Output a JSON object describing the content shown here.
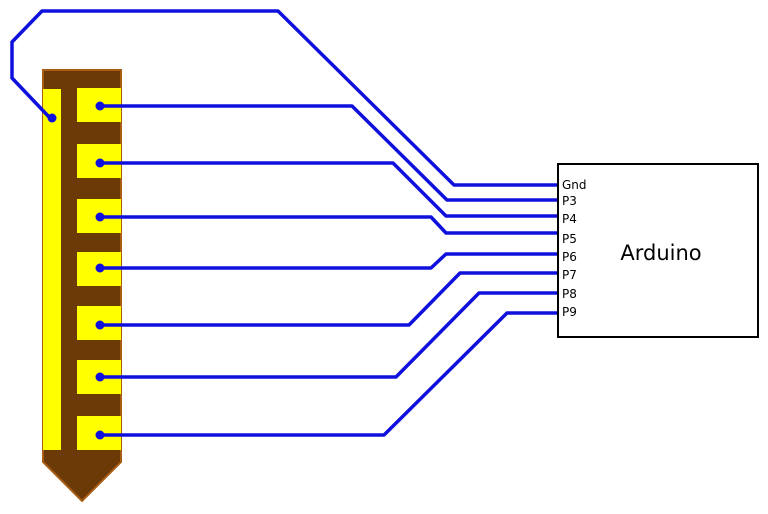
{
  "colors": {
    "probe_body": "#6b3a06",
    "probe_outline": "#a85d12",
    "pad": "#ffff00",
    "wire": "#1010dd",
    "box_stroke": "#000000",
    "background": "#ffffff"
  },
  "arduino": {
    "title": "Arduino",
    "pins": [
      "Gnd",
      "P3",
      "P4",
      "P5",
      "P6",
      "P7",
      "P8",
      "P9"
    ]
  }
}
